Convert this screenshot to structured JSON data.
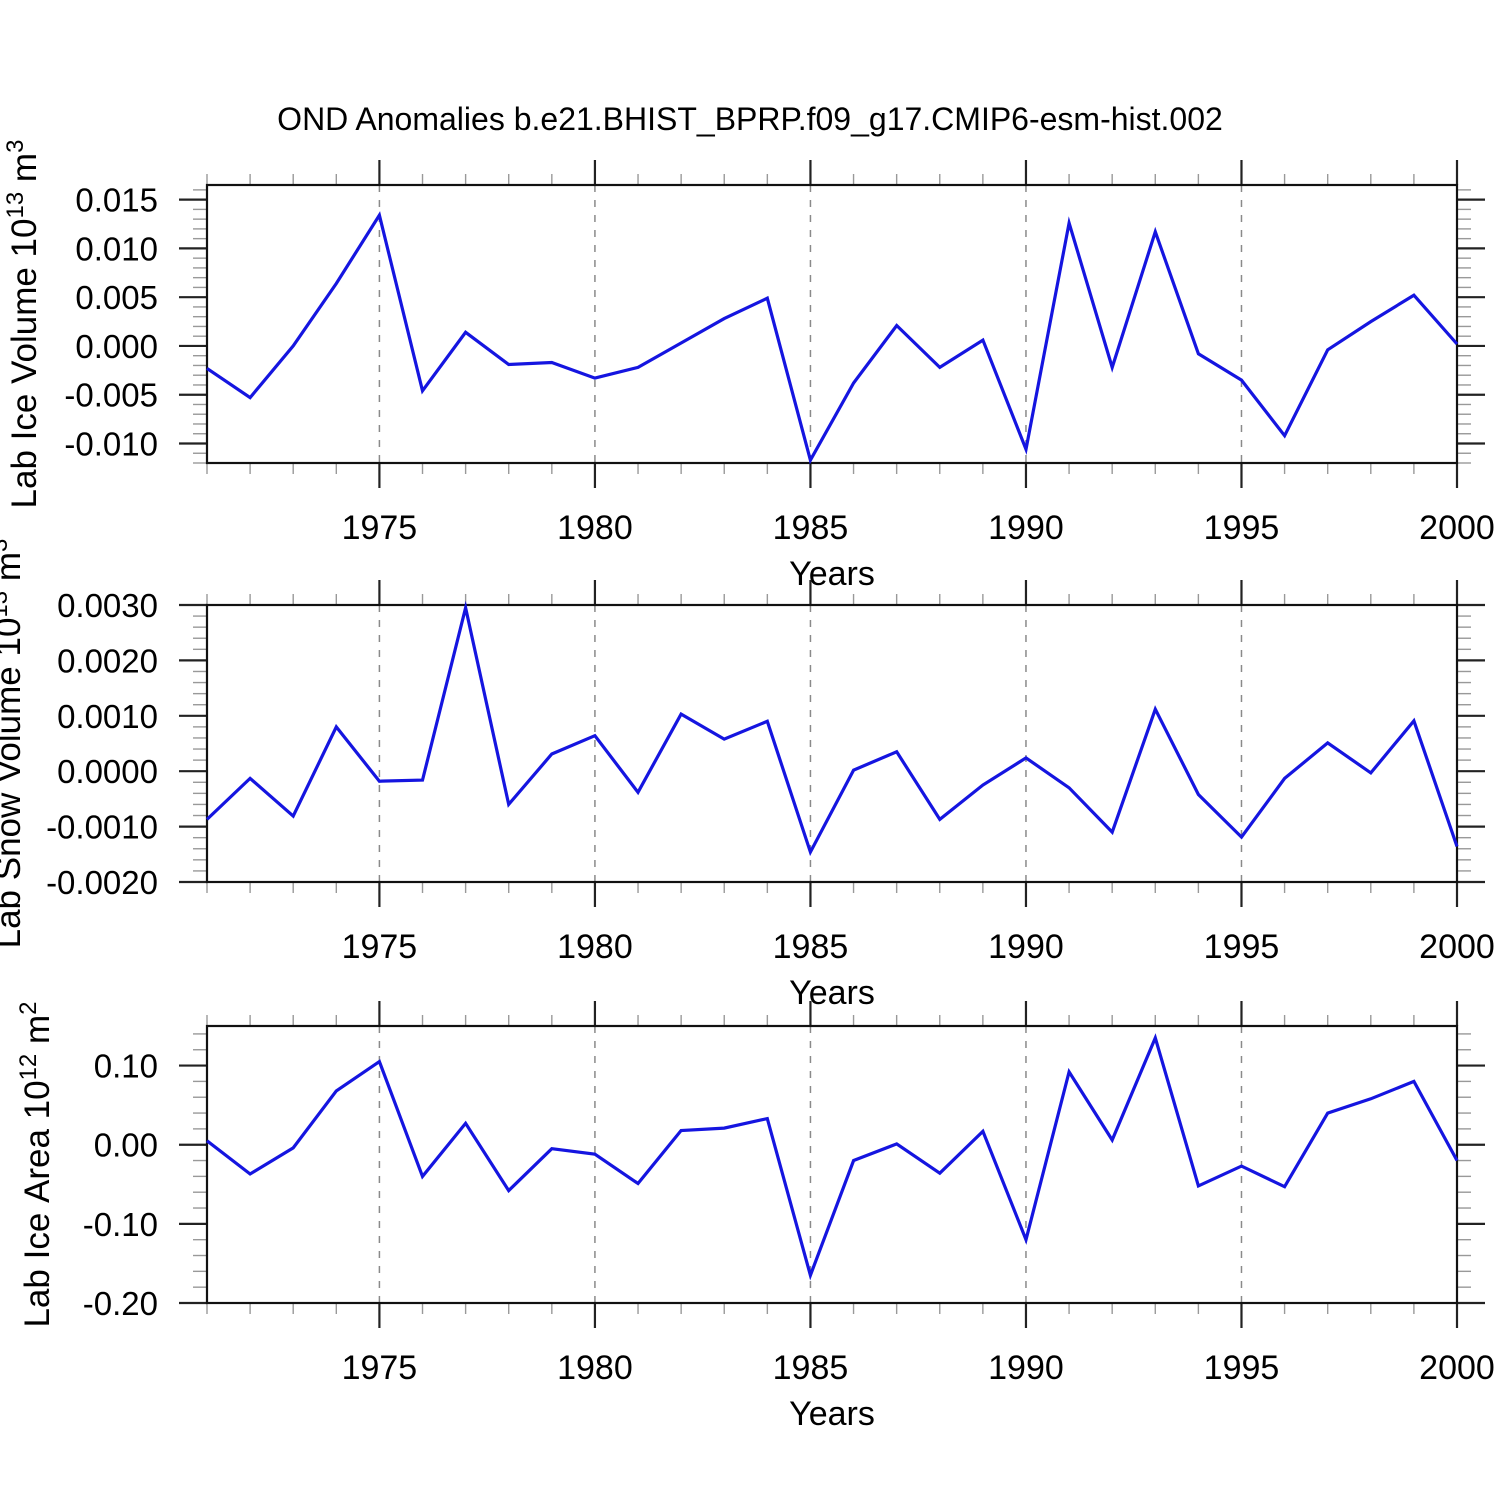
{
  "title": "OND Anomalies b.e21.BHIST_BPRP.f09_g17.CMIP6-esm-hist.002",
  "style": {
    "line_color": "#1515e0",
    "grid_color": "#8a8a8a",
    "frame_color": "#111111",
    "tick_major_color": "#222222",
    "tick_minor_color": "#999999",
    "text_color": "#000000",
    "background": "#ffffff"
  },
  "x_axis": {
    "label": "Years",
    "major_ticks": [
      1975,
      1980,
      1985,
      1990,
      1995,
      2000
    ],
    "major_tick_labels": [
      "1975",
      "1980",
      "1985",
      "1990",
      "1995",
      "2000"
    ],
    "gridlines": [
      1975,
      1980,
      1985,
      1990,
      1995
    ]
  },
  "chart_data": [
    {
      "type": "line",
      "title": "",
      "xlabel": "Years",
      "ylabel": "Lab Ice Volume 10^13 m^3",
      "ylabel_segments": [
        [
          "Lab Ice Volume 10",
          "n"
        ],
        [
          "13",
          "s"
        ],
        [
          " m",
          "n"
        ],
        [
          "3",
          "s"
        ]
      ],
      "xlim": [
        1971,
        2000
      ],
      "ylim": [
        -0.012,
        0.0165
      ],
      "yticks": [
        0.015,
        0.01,
        0.005,
        0.0,
        -0.005,
        -0.01
      ],
      "ytick_labels": [
        "0.015",
        "0.010",
        "0.005",
        "0.000",
        "-0.005",
        "-0.010"
      ],
      "y_minor_step": 0.001,
      "x_minor_step": 1,
      "grid": true,
      "legend": "none",
      "x": [
        1971,
        1972,
        1973,
        1974,
        1975,
        1976,
        1977,
        1978,
        1979,
        1980,
        1981,
        1982,
        1983,
        1984,
        1985,
        1986,
        1987,
        1988,
        1989,
        1990,
        1991,
        1992,
        1993,
        1994,
        1995,
        1996,
        1997,
        1998,
        1999,
        2000
      ],
      "values": [
        -0.0023,
        -0.0053,
        0.0,
        0.0064,
        0.0134,
        -0.0046,
        0.0014,
        -0.0019,
        -0.0017,
        -0.0033,
        -0.0022,
        0.0003,
        0.0028,
        0.0049,
        -0.0117,
        -0.0038,
        0.0021,
        -0.0022,
        0.0006,
        -0.0106,
        0.0126,
        -0.0022,
        0.0117,
        -0.0008,
        -0.0035,
        -0.0092,
        -0.0004,
        0.0025,
        0.0052,
        0.0002
      ]
    },
    {
      "type": "line",
      "title": "",
      "xlabel": "Years",
      "ylabel": "Lab Snow Volume 10^13 m^3",
      "ylabel_segments": [
        [
          "Lab Snow Volume 10",
          "n"
        ],
        [
          "13",
          "s"
        ],
        [
          " m",
          "n"
        ],
        [
          "3",
          "s"
        ]
      ],
      "xlim": [
        1971,
        2000
      ],
      "ylim": [
        -0.002,
        0.003
      ],
      "yticks": [
        0.003,
        0.002,
        0.001,
        0.0,
        -0.001,
        -0.002
      ],
      "ytick_labels": [
        "0.0030",
        "0.0020",
        "0.0010",
        "0.0000",
        "-0.0010",
        "-0.0020"
      ],
      "y_minor_step": 0.0002,
      "x_minor_step": 1,
      "grid": true,
      "legend": "none",
      "x": [
        1971,
        1972,
        1973,
        1974,
        1975,
        1976,
        1977,
        1978,
        1979,
        1980,
        1981,
        1982,
        1983,
        1984,
        1985,
        1986,
        1987,
        1988,
        1989,
        1990,
        1991,
        1992,
        1993,
        1994,
        1995,
        1996,
        1997,
        1998,
        1999,
        2000
      ],
      "values": [
        -0.00087,
        -0.00013,
        -0.00081,
        0.0008,
        -0.00018,
        -0.00016,
        0.00295,
        -0.0006,
        0.00031,
        0.00064,
        -0.00038,
        0.00103,
        0.00058,
        0.0009,
        -0.00146,
        2e-05,
        0.00035,
        -0.00087,
        -0.00025,
        0.00024,
        -0.0003,
        -0.0011,
        0.00112,
        -0.00042,
        -0.00119,
        -0.00013,
        0.00051,
        -3e-05,
        0.00091,
        -0.00136
      ]
    },
    {
      "type": "line",
      "title": "",
      "xlabel": "Years",
      "ylabel": "Lab Ice Area 10^12 m^2",
      "ylabel_segments": [
        [
          "Lab Ice Area 10",
          "n"
        ],
        [
          "12",
          "s"
        ],
        [
          " m",
          "n"
        ],
        [
          "2",
          "s"
        ]
      ],
      "xlim": [
        1971,
        2000
      ],
      "ylim": [
        -0.2,
        0.15
      ],
      "yticks": [
        0.1,
        0.0,
        -0.1,
        -0.2
      ],
      "ytick_labels": [
        "0.10",
        "0.00",
        "-0.10",
        "-0.20"
      ],
      "y_minor_step": 0.02,
      "x_minor_step": 1,
      "grid": true,
      "legend": "none",
      "x": [
        1971,
        1972,
        1973,
        1974,
        1975,
        1976,
        1977,
        1978,
        1979,
        1980,
        1981,
        1982,
        1983,
        1984,
        1985,
        1986,
        1987,
        1988,
        1989,
        1990,
        1991,
        1992,
        1993,
        1994,
        1995,
        1996,
        1997,
        1998,
        1999,
        2000
      ],
      "values": [
        0.005,
        -0.037,
        -0.004,
        0.068,
        0.105,
        -0.04,
        0.027,
        -0.058,
        -0.005,
        -0.012,
        -0.049,
        0.018,
        0.021,
        0.033,
        -0.165,
        -0.02,
        0.001,
        -0.036,
        0.017,
        -0.12,
        0.092,
        0.006,
        0.135,
        -0.052,
        -0.027,
        -0.053,
        0.04,
        0.058,
        0.08,
        -0.02
      ]
    }
  ]
}
